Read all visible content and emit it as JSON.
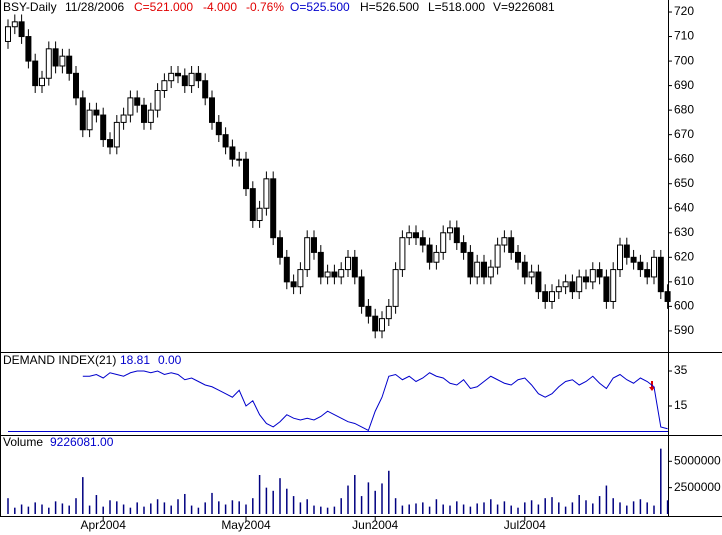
{
  "chart_data": [
    {
      "type": "candlestick",
      "title": "BSY-Daily",
      "date": "11/28/2006",
      "close_label": "C=521.000",
      "change": "-4.000",
      "change_pct": "-0.76%",
      "open_label": "O=525.500",
      "high_label": "H=526.500",
      "low_label": "L=518.000",
      "volume_label": "V=9226081",
      "ylim": [
        581.4,
        724.9
      ],
      "yticks": [
        590,
        600,
        610,
        620,
        630,
        640,
        650,
        660,
        670,
        680,
        690,
        700,
        710,
        720
      ],
      "open": [
        708,
        714,
        716,
        710,
        700,
        690,
        693,
        705,
        698,
        702,
        695,
        685,
        672,
        680,
        678,
        668,
        665,
        675,
        678,
        685,
        682,
        675,
        680,
        688,
        692,
        695,
        694,
        690,
        695,
        692,
        685,
        675,
        670,
        665,
        660,
        660,
        648,
        635,
        640,
        652,
        628,
        620,
        610,
        608,
        615,
        628,
        622,
        612,
        614,
        612,
        615,
        620,
        612,
        600,
        596,
        590,
        595,
        600,
        615,
        628,
        630,
        628,
        625,
        618,
        622,
        630,
        632,
        626,
        622,
        612,
        618,
        612,
        616,
        625,
        628,
        622,
        618,
        612,
        614,
        606,
        602,
        606,
        608,
        610,
        606,
        612,
        610,
        615,
        612,
        602,
        615,
        625,
        620,
        618,
        615,
        612,
        620,
        606
      ],
      "high": [
        717,
        719,
        719,
        713,
        703,
        696,
        708,
        708,
        705,
        705,
        698,
        688,
        683,
        683,
        681,
        671,
        678,
        681,
        688,
        688,
        685,
        683,
        691,
        695,
        698,
        698,
        697,
        698,
        698,
        695,
        688,
        678,
        673,
        668,
        663,
        663,
        651,
        643,
        655,
        655,
        631,
        623,
        613,
        618,
        631,
        631,
        625,
        617,
        617,
        618,
        623,
        623,
        615,
        603,
        599,
        598,
        603,
        618,
        631,
        633,
        633,
        631,
        628,
        625,
        633,
        635,
        635,
        629,
        625,
        621,
        621,
        619,
        628,
        631,
        631,
        625,
        621,
        617,
        617,
        609,
        609,
        611,
        613,
        613,
        615,
        615,
        618,
        618,
        615,
        618,
        628,
        628,
        623,
        621,
        618,
        623,
        623,
        609
      ],
      "low": [
        705,
        711,
        707,
        697,
        687,
        687,
        690,
        695,
        695,
        692,
        682,
        669,
        669,
        675,
        665,
        662,
        662,
        672,
        675,
        679,
        672,
        672,
        677,
        685,
        689,
        691,
        687,
        687,
        689,
        682,
        672,
        667,
        662,
        657,
        657,
        645,
        632,
        632,
        637,
        625,
        617,
        607,
        605,
        605,
        612,
        619,
        609,
        609,
        609,
        609,
        612,
        609,
        597,
        593,
        587,
        587,
        592,
        597,
        612,
        625,
        625,
        622,
        615,
        615,
        619,
        627,
        623,
        619,
        609,
        609,
        609,
        609,
        613,
        622,
        619,
        615,
        609,
        609,
        603,
        599,
        599,
        603,
        605,
        603,
        603,
        607,
        607,
        609,
        599,
        599,
        612,
        617,
        615,
        612,
        609,
        609,
        603,
        599
      ],
      "close": [
        714,
        716,
        710,
        700,
        690,
        693,
        705,
        698,
        702,
        695,
        685,
        672,
        680,
        678,
        668,
        665,
        675,
        678,
        685,
        682,
        675,
        680,
        688,
        692,
        695,
        694,
        690,
        695,
        692,
        685,
        675,
        670,
        665,
        660,
        660,
        648,
        635,
        640,
        652,
        628,
        620,
        610,
        608,
        615,
        628,
        622,
        612,
        614,
        612,
        615,
        620,
        612,
        600,
        596,
        590,
        595,
        600,
        615,
        628,
        630,
        628,
        625,
        618,
        622,
        630,
        632,
        626,
        622,
        612,
        618,
        612,
        616,
        625,
        628,
        622,
        618,
        612,
        614,
        606,
        602,
        606,
        608,
        610,
        606,
        612,
        610,
        615,
        612,
        602,
        615,
        625,
        620,
        618,
        615,
        612,
        620,
        606,
        602
      ],
      "up_color": "#ffffff",
      "down_color": "#000000"
    },
    {
      "type": "line",
      "title": "DEMAND INDEX(21)",
      "value_1": "18.81",
      "value_2": "0.00",
      "ylim": [
        -1.6,
        45.3
      ],
      "yticks": [
        15,
        35
      ],
      "series": [
        {
          "color": "#0000cc",
          "values": [
            null,
            null,
            null,
            null,
            null,
            null,
            null,
            null,
            null,
            null,
            null,
            32,
            32,
            33,
            31,
            34,
            33,
            32,
            34,
            35,
            35,
            34,
            35,
            33,
            34,
            33,
            30,
            31,
            29,
            27,
            26,
            24,
            22,
            20,
            24,
            15,
            18,
            10,
            5,
            3,
            6,
            10,
            8,
            7,
            8,
            7,
            9,
            12,
            10,
            8,
            6,
            5,
            3,
            1,
            12,
            20,
            32,
            33,
            30,
            32,
            29,
            31,
            34,
            32,
            31,
            28,
            27,
            30,
            25,
            26,
            29,
            32,
            30,
            28,
            27,
            30,
            31,
            27,
            22,
            20,
            22,
            26,
            29,
            30,
            27,
            29,
            32,
            28,
            25,
            31,
            33,
            30,
            28,
            31,
            29,
            26,
            3,
            2
          ]
        }
      ]
    },
    {
      "type": "bar",
      "title": "Volume",
      "value_1": "9226081.00",
      "ylim": [
        0,
        7400000
      ],
      "yticks": [
        2500000,
        5000000
      ],
      "color": "#000080",
      "categories": [
        null,
        null,
        null,
        null,
        null,
        null,
        null,
        null,
        null,
        null,
        null,
        null,
        null,
        null,
        "Apr2004",
        null,
        null,
        null,
        null,
        null,
        null,
        null,
        null,
        null,
        null,
        null,
        null,
        null,
        null,
        null,
        null,
        null,
        null,
        null,
        null,
        "May2004",
        null,
        null,
        null,
        null,
        null,
        null,
        null,
        null,
        null,
        null,
        null,
        null,
        null,
        null,
        null,
        null,
        null,
        null,
        "Jun2004",
        null,
        null,
        null,
        null,
        null,
        null,
        null,
        null,
        null,
        null,
        null,
        null,
        null,
        null,
        null,
        null,
        null,
        null,
        null,
        null,
        null,
        "Jul2004",
        null,
        null,
        null,
        null,
        null,
        null,
        null,
        null,
        null,
        null,
        null,
        null,
        null,
        null,
        null,
        null,
        null,
        null,
        null,
        null,
        null
      ],
      "values": [
        1500000,
        600000,
        900000,
        700000,
        1100000,
        900000,
        600000,
        1200000,
        1000000,
        800000,
        1500000,
        3500000,
        800000,
        1800000,
        700000,
        1300000,
        1200000,
        900000,
        600000,
        1100000,
        700000,
        1000000,
        1400000,
        1100000,
        800000,
        1400000,
        1900000,
        800000,
        600000,
        1100000,
        2000000,
        1200000,
        900000,
        1300000,
        1200000,
        900000,
        1500000,
        3700000,
        2500000,
        2200000,
        3400000,
        2400000,
        1700000,
        1100000,
        1400000,
        800000,
        700000,
        600000,
        700000,
        1500000,
        2700000,
        3700000,
        1700000,
        3000000,
        2200000,
        2900000,
        4100000,
        1500000,
        800000,
        900000,
        1000000,
        1100000,
        700000,
        1400000,
        900000,
        800000,
        1200000,
        900000,
        700000,
        1000000,
        1100000,
        1400000,
        900000,
        1200000,
        800000,
        600000,
        1100000,
        1300000,
        900000,
        1500000,
        1600000,
        1100000,
        700000,
        1100000,
        1800000,
        1300000,
        1000000,
        1700000,
        2700000,
        1500000,
        1100000,
        800000,
        1200000,
        1400000,
        1100000,
        800000,
        6200000,
        1300000
      ]
    }
  ]
}
